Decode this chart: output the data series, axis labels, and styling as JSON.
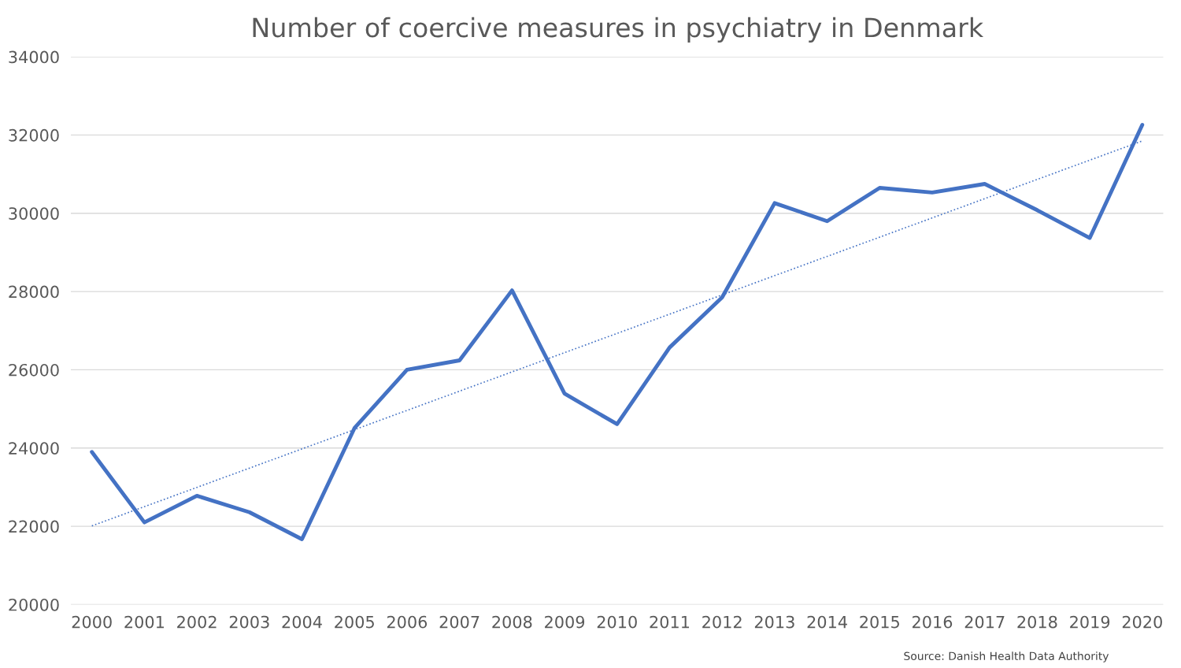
{
  "chart_data": {
    "type": "line",
    "title": "Number of coercive measures in psychiatry in Denmark",
    "categories": [
      "2000",
      "2001",
      "2002",
      "2003",
      "2004",
      "2005",
      "2006",
      "2007",
      "2008",
      "2009",
      "2010",
      "2011",
      "2012",
      "2013",
      "2014",
      "2015",
      "2016",
      "2017",
      "2018",
      "2019",
      "2020"
    ],
    "series": [
      {
        "color": "#4472c4",
        "line_style": "solid",
        "values": [
          23900,
          22100,
          22780,
          22360,
          21670,
          24510,
          26000,
          26240,
          28030,
          25390,
          24610,
          26570,
          27850,
          30260,
          29800,
          30650,
          30530,
          30750,
          30080,
          29370,
          32260
        ]
      },
      {
        "type": "line",
        "color": "#4472c4",
        "line_style": "dotted",
        "values": [
          22010,
          null,
          null,
          null,
          null,
          null,
          null,
          null,
          null,
          null,
          null,
          null,
          null,
          null,
          null,
          null,
          null,
          null,
          null,
          null,
          31850
        ]
      }
    ],
    "ylim": [
      20000,
      34000
    ],
    "yticks": [
      20000,
      22000,
      24000,
      26000,
      28000,
      30000,
      32000,
      34000
    ],
    "grid": "y",
    "marker": "none",
    "annotations": [
      "Source: Danish Health Data Authority"
    ]
  }
}
